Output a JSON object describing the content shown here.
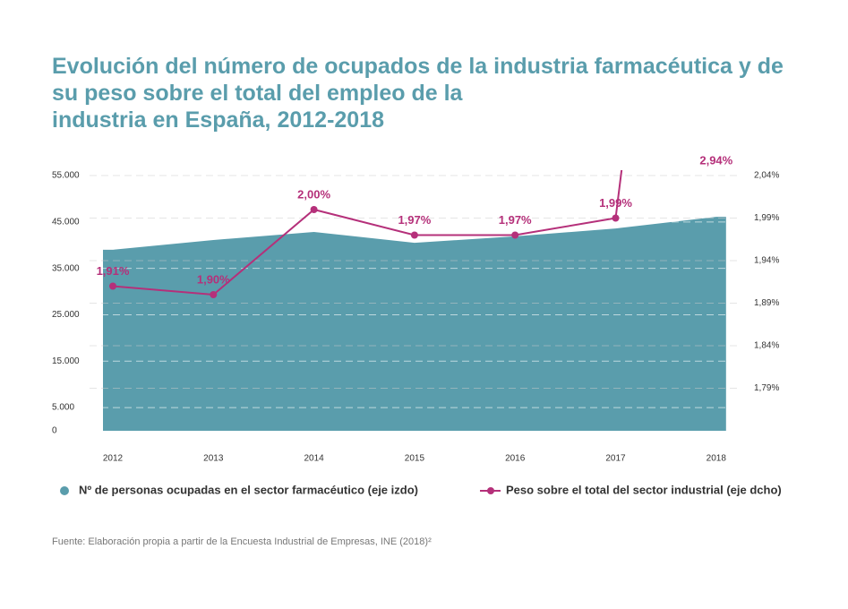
{
  "chart_data": {
    "type": "area-line",
    "title": [
      "Evolución del número de ocupados de la industria farmacéutica y de",
      "su peso sobre el total del empleo de la",
      "industria en España, 2012-2018"
    ],
    "categories": [
      "2012",
      "2013",
      "2014",
      "2015",
      "2016",
      "2017",
      "2018"
    ],
    "series": [
      {
        "name": "Nº de personas ocupadas en el sector farmacéutico (eje izdo)",
        "type": "area",
        "color": "#5a9dac",
        "values": [
          39000,
          41100,
          42850,
          40500,
          41900,
          43600,
          46100
        ]
      },
      {
        "name": "Peso sobre el total del sector industrial (eje dcho)",
        "type": "line",
        "axis": "y2",
        "color": "#b5307a",
        "values": [
          1.91,
          1.9,
          2.0,
          1.97,
          1.97,
          1.99,
          2.94
        ],
        "value_labels": [
          "1,91%",
          "1,90%",
          "2,00%",
          "1,97%",
          "1,97%",
          "1,99%",
          "2,94%"
        ]
      }
    ],
    "ylim": [
      0,
      55000
    ],
    "yticks": [
      0,
      {
        "value": 5000,
        "label": "5.000"
      },
      {
        "value": 15000,
        "label": "15.000"
      },
      {
        "value": 25000,
        "label": "25.000"
      },
      {
        "value": 35000,
        "label": "35.000"
      },
      {
        "value": 45000,
        "label": "45.000"
      },
      {
        "value": 55000,
        "label": "55.000"
      }
    ],
    "y2lim": [
      1.74,
      2.04
    ],
    "y2ticks": [
      {
        "value": 1.79,
        "label": "1,79%"
      },
      {
        "value": 1.84,
        "label": "1,84%"
      },
      {
        "value": 1.89,
        "label": "1,89%"
      },
      {
        "value": 1.94,
        "label": "1,94%"
      },
      {
        "value": 1.99,
        "label": "1,99%"
      },
      {
        "value": 2.04,
        "label": "2,04%"
      }
    ],
    "grid": true,
    "legend": "bottom",
    "source": "Fuente: Elaboración propia a partir de la Encuesta Industrial de Empresas, INE (2018)²"
  }
}
